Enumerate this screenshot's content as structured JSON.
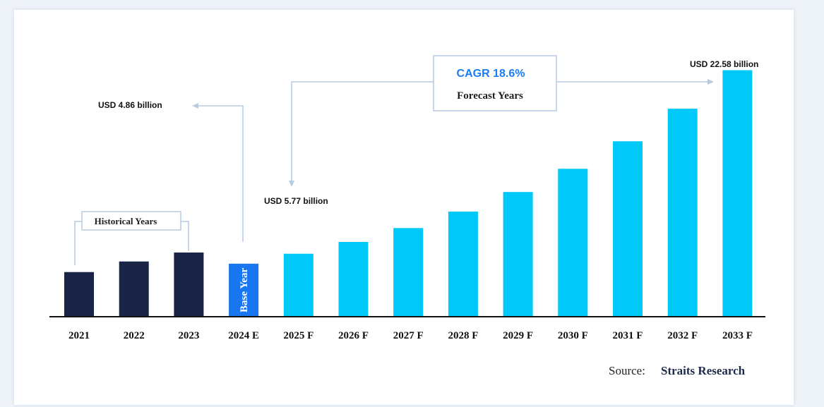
{
  "chart_data": {
    "type": "bar",
    "categories": [
      "2021",
      "2022",
      "2023",
      "2024 E",
      "2025 F",
      "2026 F",
      "2027 F",
      "2028 F",
      "2029 F",
      "2030 F",
      "2031 F",
      "2032 F",
      "2033 F"
    ],
    "values": [
      4.09,
      5.06,
      5.88,
      4.86,
      5.77,
      6.85,
      8.12,
      9.63,
      11.42,
      13.55,
      16.07,
      19.05,
      22.58
    ],
    "ylim": [
      0,
      23.0
    ],
    "grid": false,
    "colors": {
      "historical": "#1a2447",
      "base_year": "#1776f0",
      "forecast": "#00c8f8",
      "connector": "#b7cbe0",
      "cagr_text": "#1a7cf2"
    },
    "annotations": {
      "historical_label": "Historical Years",
      "base_year_label": "Base Year",
      "usd_2024": "USD 4.86 billion",
      "usd_2025": "USD 5.77 billion",
      "usd_2033": "USD 22.58 billion",
      "cagr": "CAGR 18.6%",
      "forecast_label": "Forecast Years"
    },
    "source_prefix": "Source:",
    "source_name": "Straits Research"
  }
}
